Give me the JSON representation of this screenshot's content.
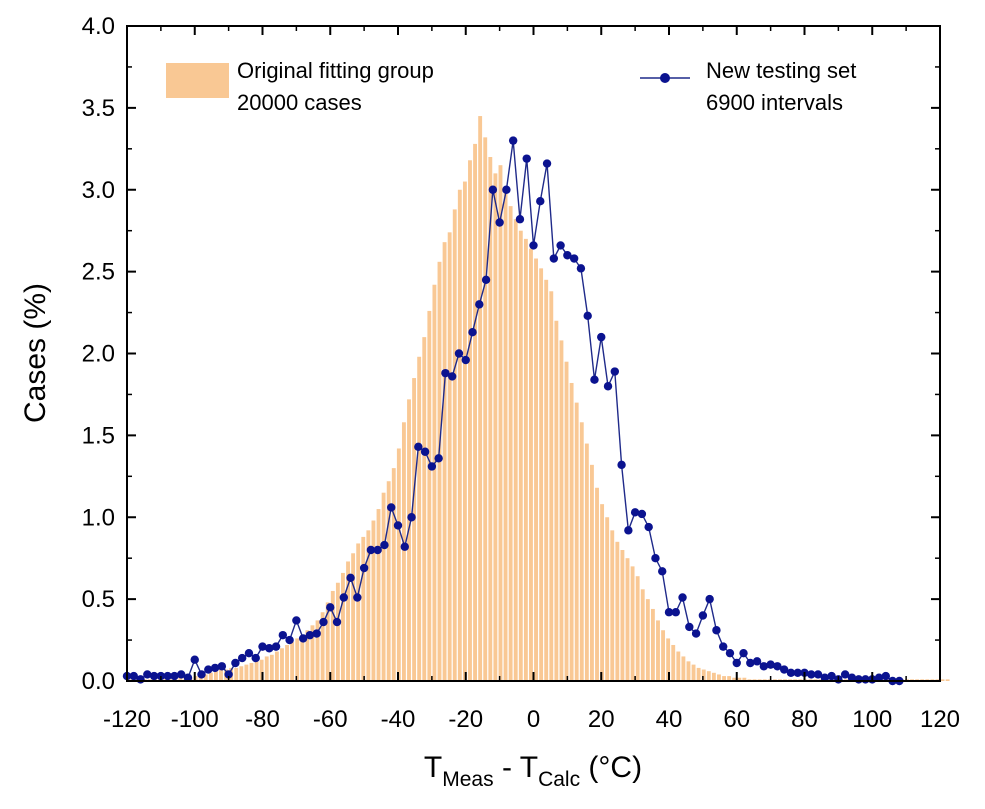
{
  "colors": {
    "bar_fill": "#F9C894",
    "line": "#1F2A8A",
    "marker": "#0B1390",
    "axis": "#000000"
  },
  "chart_data": {
    "type": "bar+line",
    "title": "",
    "xlabel": {
      "main_a": "T",
      "sub_a": "Meas",
      "middle": " - T",
      "sub_b": "Calc",
      "tail": " (°C)"
    },
    "ylabel": "Cases (%)",
    "xlim": [
      -120,
      120
    ],
    "ylim": [
      0,
      4.0
    ],
    "x_ticks": [
      -120,
      -100,
      -80,
      -60,
      -40,
      -20,
      0,
      20,
      40,
      60,
      80,
      100,
      120
    ],
    "x_tick_labels": [
      "-120",
      "-100",
      "-80",
      "-60",
      "-40",
      "-20",
      "0",
      "20",
      "40",
      "60",
      "80",
      "100",
      "120"
    ],
    "y_ticks": [
      0,
      0.5,
      1.0,
      1.5,
      2.0,
      2.5,
      3.0,
      3.5,
      4.0
    ],
    "y_tick_labels": [
      "0.0",
      "0.5",
      "1.0",
      "1.5",
      "2.0",
      "2.5",
      "3.0",
      "3.5",
      "4.0"
    ],
    "legend": {
      "bars_line1": "Original fitting group",
      "bars_line2": "20000 cases",
      "line_line1": "New testing set",
      "line_line2": "6900 intervals"
    },
    "bars": {
      "name": "Original fitting group 20000 cases",
      "x_start": -120,
      "bin_width": 1.5,
      "values": [
        0.01,
        0.01,
        0.01,
        0.01,
        0.01,
        0.01,
        0.01,
        0.01,
        0.01,
        0.01,
        0.02,
        0.02,
        0.02,
        0.03,
        0.03,
        0.04,
        0.05,
        0.06,
        0.07,
        0.07,
        0.08,
        0.08,
        0.09,
        0.1,
        0.11,
        0.12,
        0.13,
        0.15,
        0.16,
        0.18,
        0.2,
        0.22,
        0.24,
        0.26,
        0.28,
        0.31,
        0.34,
        0.37,
        0.42,
        0.48,
        0.55,
        0.6,
        0.66,
        0.73,
        0.78,
        0.84,
        0.88,
        0.92,
        0.98,
        1.05,
        1.15,
        1.22,
        1.3,
        1.42,
        1.58,
        1.72,
        1.85,
        1.98,
        2.1,
        2.26,
        2.42,
        2.56,
        2.68,
        2.74,
        2.88,
        3.0,
        3.05,
        3.18,
        3.28,
        3.45,
        3.32,
        3.2,
        3.1,
        3.15,
        3.0,
        2.9,
        2.82,
        2.75,
        2.7,
        2.64,
        2.58,
        2.52,
        2.45,
        2.38,
        2.2,
        2.08,
        1.95,
        1.82,
        1.7,
        1.58,
        1.45,
        1.32,
        1.18,
        1.08,
        1.0,
        0.92,
        0.85,
        0.8,
        0.75,
        0.7,
        0.64,
        0.56,
        0.5,
        0.44,
        0.37,
        0.31,
        0.26,
        0.22,
        0.18,
        0.15,
        0.12,
        0.1,
        0.08,
        0.07,
        0.06,
        0.05,
        0.04,
        0.03,
        0.03,
        0.02,
        0.02,
        0.02,
        0.01,
        0.01,
        0.01,
        0.01,
        0.01,
        0.01,
        0.01,
        0.01,
        0.01,
        0.01,
        0.01,
        0.01,
        0.01,
        0.01,
        0.01,
        0.01,
        0.01,
        0.01,
        0.01,
        0.01,
        0.01,
        0.01,
        0.01,
        0.01,
        0.01,
        0.01,
        0.01,
        0.01,
        0.01,
        0.01,
        0.01,
        0.01,
        0.01,
        0.01,
        0.01,
        0.01,
        0.01,
        0.01,
        0.01,
        0.01
      ]
    },
    "series": {
      "name": "New testing set 6900 intervals",
      "x_start": -120,
      "step": 2,
      "values": [
        0.03,
        0.03,
        0.01,
        0.04,
        0.03,
        0.03,
        0.03,
        0.03,
        0.04,
        0.02,
        0.13,
        0.04,
        0.07,
        0.08,
        0.09,
        0.04,
        0.11,
        0.14,
        0.17,
        0.14,
        0.21,
        0.2,
        0.21,
        0.28,
        0.25,
        0.37,
        0.26,
        0.28,
        0.29,
        0.36,
        0.45,
        0.36,
        0.51,
        0.63,
        0.51,
        0.69,
        0.8,
        0.8,
        0.83,
        1.06,
        0.95,
        0.82,
        1.0,
        1.43,
        1.4,
        1.31,
        1.36,
        1.88,
        1.86,
        2.0,
        1.96,
        2.13,
        2.3,
        2.45,
        3.0,
        2.8,
        3.0,
        3.3,
        2.82,
        3.19,
        2.66,
        2.93,
        3.16,
        2.58,
        2.66,
        2.6,
        2.58,
        2.52,
        2.23,
        1.84,
        2.1,
        1.8,
        1.89,
        1.32,
        0.92,
        1.03,
        1.02,
        0.94,
        0.75,
        0.67,
        0.42,
        0.42,
        0.51,
        0.33,
        0.29,
        0.4,
        0.5,
        0.31,
        0.21,
        0.17,
        0.11,
        0.17,
        0.11,
        0.12,
        0.09,
        0.1,
        0.09,
        0.07,
        0.05,
        0.05,
        0.05,
        0.04,
        0.04,
        0.02,
        0.03,
        0.01,
        0.04,
        0.02,
        0.01,
        0.01,
        0.01,
        0.02,
        0.03,
        0.0,
        0.0
      ]
    }
  }
}
